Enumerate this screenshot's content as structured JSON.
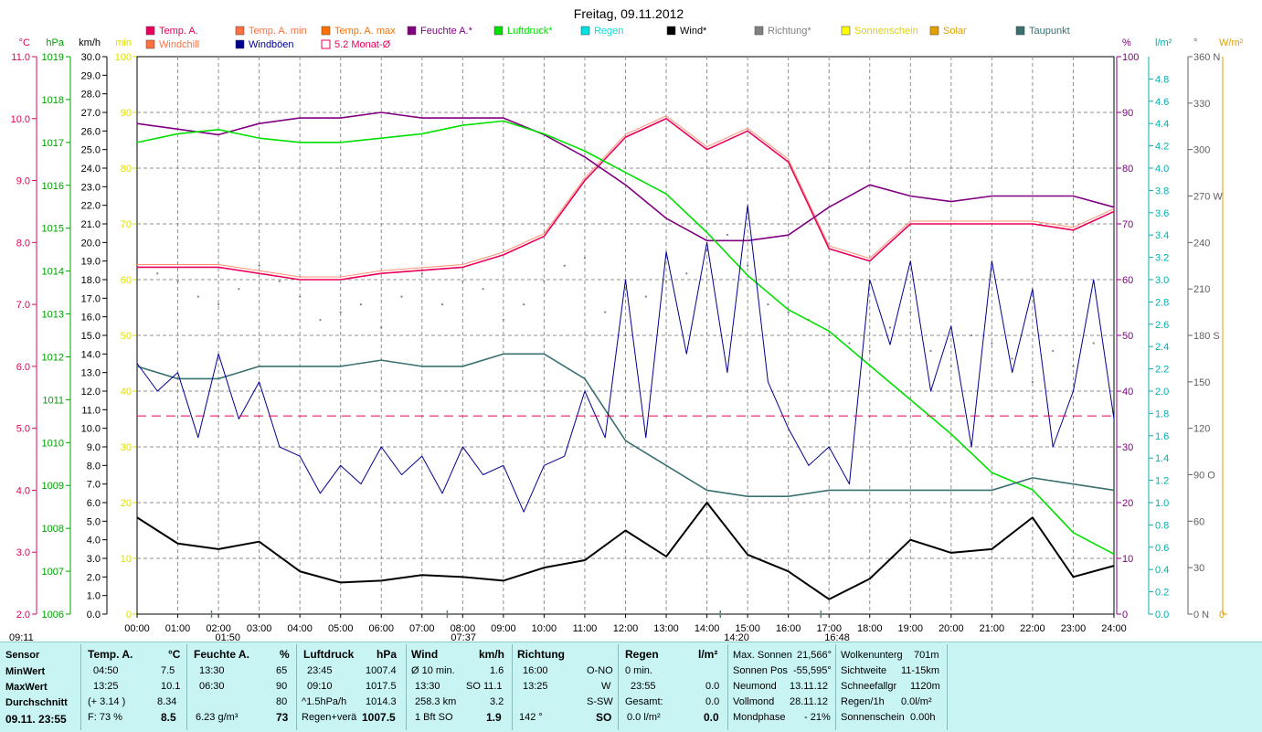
{
  "chart_data": {
    "type": "line",
    "title": "Freitag, 09.11.2012",
    "x_ticks": [
      "00:00",
      "01:00",
      "02:00",
      "03:00",
      "04:00",
      "05:00",
      "06:00",
      "07:00",
      "08:00",
      "09:00",
      "10:00",
      "11:00",
      "12:00",
      "13:00",
      "14:00",
      "15:00",
      "16:00",
      "17:00",
      "18:00",
      "19:00",
      "20:00",
      "21:00",
      "22:00",
      "23:00",
      "24:00"
    ],
    "xlim": [
      0,
      24
    ],
    "legend": [
      {
        "name": "Temp. A.",
        "color": "#e8005a",
        "shape": "box"
      },
      {
        "name": "Temp. A. min",
        "color": "#ff7040",
        "shape": "box"
      },
      {
        "name": "Temp. A. max",
        "color": "#ff7000",
        "shape": "box"
      },
      {
        "name": "Feuchte A.*",
        "color": "#800080",
        "shape": "box"
      },
      {
        "name": "Luftdruck*",
        "color": "#00e000",
        "shape": "box"
      },
      {
        "name": "Regen",
        "color": "#00e0e0",
        "shape": "box"
      },
      {
        "name": "Wind*",
        "color": "#000000",
        "shape": "box"
      },
      {
        "name": "Richtung*",
        "color": "#808080",
        "shape": "box"
      },
      {
        "name": "Sonnenschein",
        "color": "#ffff00",
        "shape": "box"
      },
      {
        "name": "Solar",
        "color": "#e0a000",
        "shape": "box"
      },
      {
        "name": "Taupunkt",
        "color": "#3a7070",
        "shape": "box"
      },
      {
        "name": "Windchill",
        "color": "#ff7040",
        "shape": "box"
      },
      {
        "name": "Windböen",
        "color": "#000090",
        "shape": "box"
      },
      {
        "name": "5.2 Monat-Ø",
        "color": "#e8005a",
        "shape": "outline"
      }
    ],
    "axes": {
      "temp": {
        "unit": "°C",
        "color": "#e8005a",
        "range": [
          2.0,
          11.0
        ],
        "ticks": [
          "11.0",
          "10.0",
          "9.0",
          "8.0",
          "7.0",
          "6.0",
          "5.0",
          "4.0",
          "3.0",
          "2.0"
        ]
      },
      "hpa": {
        "unit": "hPa",
        "color": "#00a000",
        "range": [
          1006,
          1019
        ],
        "ticks": [
          "1019",
          "1018",
          "1017",
          "1016",
          "1015",
          "1014",
          "1013",
          "1012",
          "1011",
          "1010",
          "1009",
          "1008",
          "1007",
          "1006"
        ]
      },
      "kmh": {
        "unit": "km/h",
        "color": "#000000",
        "range": [
          0,
          30
        ],
        "ticks": [
          "30.0",
          "29.0",
          "28.0",
          "27.0",
          "26.0",
          "25.0",
          "24.0",
          "23.0",
          "22.0",
          "21.0",
          "20.0",
          "19.0",
          "18.0",
          "17.0",
          "16.0",
          "15.0",
          "14.0",
          "13.0",
          "12.0",
          "11.0",
          "10.0",
          "9.0",
          "8.0",
          "7.0",
          "6.0",
          "5.0",
          "4.0",
          "3.0",
          "2.0",
          "1.0",
          "0.0"
        ]
      },
      "min": {
        "unit": "min",
        "color": "#e0e000",
        "range": [
          0,
          100
        ],
        "ticks": [
          "100",
          "90",
          "80",
          "70",
          "60",
          "50",
          "40",
          "30",
          "20",
          "10",
          "0"
        ]
      },
      "pct": {
        "unit": "%",
        "color": "#800080",
        "range": [
          0,
          100
        ],
        "ticks": [
          "100",
          "90",
          "80",
          "70",
          "60",
          "50",
          "40",
          "30",
          "20",
          "10",
          "0"
        ]
      },
      "rain": {
        "unit": "l/m²",
        "color": "#00b0b0",
        "range": [
          0,
          5.0
        ],
        "ticks": [
          "4.8",
          "4.6",
          "4.4",
          "4.2",
          "4.0",
          "3.8",
          "3.6",
          "3.4",
          "3.2",
          "3.0",
          "2.8",
          "2.6",
          "2.4",
          "2.2",
          "2.0",
          "1.8",
          "1.6",
          "1.4",
          "1.2",
          "1.0",
          "0.8",
          "0.6",
          "0.4",
          "0.2",
          "0.0"
        ]
      },
      "dir": {
        "unit": "°",
        "color": "#606060",
        "range": [
          0,
          360
        ],
        "ticks": [
          "360 N",
          "330",
          "300",
          "270 W",
          "240",
          "210",
          "180 S",
          "150",
          "120",
          "90  O",
          "60",
          "30",
          "0  N"
        ]
      },
      "solar": {
        "unit": "W/m²",
        "color": "#e0a000",
        "ticks": [
          "0"
        ]
      }
    },
    "series": [
      {
        "name": "Temp. A.",
        "axis": "temp",
        "color": "#e8005a",
        "x": [
          0,
          2,
          4,
          5,
          6,
          8,
          9,
          10,
          11,
          12,
          13,
          14,
          15,
          16,
          17,
          18,
          19,
          20,
          21,
          22,
          23,
          24
        ],
        "y": [
          7.6,
          7.6,
          7.4,
          7.4,
          7.5,
          7.6,
          7.8,
          8.1,
          9.0,
          9.7,
          10.0,
          9.5,
          9.8,
          9.3,
          7.9,
          7.7,
          8.3,
          8.3,
          8.3,
          8.3,
          8.2,
          8.5
        ]
      },
      {
        "name": "Feuchte A.*",
        "axis": "pct",
        "color": "#800080",
        "x": [
          0,
          1,
          2,
          3,
          4,
          5,
          6,
          7,
          8,
          9,
          10,
          11,
          12,
          13,
          14,
          15,
          16,
          17,
          18,
          19,
          20,
          21,
          22,
          23,
          24
        ],
        "y": [
          88,
          87,
          86,
          88,
          89,
          89,
          90,
          89,
          89,
          89,
          86,
          82,
          77,
          71,
          67,
          67,
          68,
          73,
          77,
          75,
          74,
          75,
          75,
          75,
          73
        ]
      },
      {
        "name": "Luftdruck*",
        "axis": "hpa",
        "color": "#00e000",
        "x": [
          0,
          1,
          2,
          3,
          4,
          5,
          6,
          7,
          8,
          9,
          10,
          11,
          12,
          13,
          14,
          15,
          16,
          17,
          18,
          19,
          20,
          21,
          22,
          23,
          24
        ],
        "y": [
          1017.0,
          1017.2,
          1017.3,
          1017.1,
          1017.0,
          1017.0,
          1017.1,
          1017.2,
          1017.4,
          1017.5,
          1017.2,
          1016.8,
          1016.3,
          1015.8,
          1014.9,
          1013.9,
          1013.1,
          1012.6,
          1011.8,
          1011.0,
          1010.2,
          1009.3,
          1008.9,
          1007.9,
          1007.4
        ]
      },
      {
        "name": "Taupunkt",
        "axis": "temp",
        "color": "#3a7070",
        "x": [
          0,
          1,
          2,
          3,
          4,
          5,
          6,
          7,
          8,
          9,
          10,
          11,
          12,
          13,
          14,
          15,
          16,
          17,
          18,
          19,
          20,
          21,
          22,
          23,
          24
        ],
        "y": [
          6.0,
          5.8,
          5.8,
          6.0,
          6.0,
          6.0,
          6.1,
          6.0,
          6.0,
          6.2,
          6.2,
          5.8,
          4.8,
          4.4,
          4.0,
          3.9,
          3.9,
          4.0,
          4.0,
          4.0,
          4.0,
          4.0,
          4.2,
          4.1,
          4.0
        ]
      },
      {
        "name": "Wind*",
        "axis": "kmh",
        "color": "#000000",
        "x": [
          0,
          1,
          2,
          3,
          4,
          5,
          6,
          7,
          8,
          9,
          10,
          11,
          12,
          13,
          14,
          15,
          16,
          17,
          18,
          19,
          20,
          21,
          22,
          23,
          24
        ],
        "y": [
          5.2,
          3.8,
          3.5,
          3.9,
          2.3,
          1.7,
          1.8,
          2.1,
          2.0,
          1.8,
          2.5,
          2.9,
          4.5,
          3.1,
          6.0,
          3.2,
          2.3,
          0.8,
          1.9,
          4.0,
          3.3,
          3.5,
          5.2,
          2.0,
          2.6
        ]
      },
      {
        "name": "Windböen",
        "axis": "kmh",
        "color": "#000090",
        "x": [
          0,
          0.5,
          1,
          1.5,
          2,
          2.5,
          3,
          3.5,
          4,
          4.5,
          5,
          5.5,
          6,
          6.5,
          7,
          7.5,
          8,
          8.5,
          9,
          9.5,
          10,
          10.5,
          11,
          11.5,
          12,
          12.5,
          13,
          13.5,
          14,
          14.5,
          15,
          15.5,
          16,
          16.5,
          17,
          17.5,
          18,
          18.5,
          19,
          19.5,
          20,
          20.5,
          21,
          21.5,
          22,
          22.5,
          23,
          23.5,
          24
        ],
        "y": [
          13.5,
          12.0,
          13.0,
          9.5,
          14.0,
          10.5,
          12.5,
          9.0,
          8.5,
          6.5,
          8.0,
          7.0,
          9.0,
          7.5,
          8.5,
          6.5,
          9.0,
          7.5,
          8.0,
          5.5,
          8.0,
          8.5,
          12.0,
          9.5,
          18.0,
          9.5,
          19.5,
          14.0,
          20.0,
          13.0,
          22.0,
          12.5,
          10.0,
          8.0,
          9.0,
          7.0,
          18.0,
          14.5,
          19.0,
          12.0,
          15.5,
          9.0,
          19.0,
          13.0,
          17.5,
          9.0,
          12.0,
          18.0,
          10.5
        ]
      },
      {
        "name": "5.2 Monat-Ø",
        "axis": "temp",
        "color": "#e8005a",
        "style": "dashed",
        "x": [
          0,
          24
        ],
        "y": [
          5.2,
          5.2
        ]
      }
    ],
    "scatter_series": [
      {
        "name": "Richtung*",
        "axis": "dir",
        "color": "#808080",
        "x": [
          0.5,
          1,
          1.5,
          2,
          2.5,
          3,
          3.5,
          4,
          4.5,
          5,
          5.5,
          6,
          6.5,
          7,
          7.5,
          8,
          8.5,
          9,
          9.5,
          10,
          10.5,
          11,
          11.5,
          12,
          12.5,
          13,
          13.5,
          14,
          14.5,
          15,
          15.5,
          16,
          16.5,
          17,
          17.5,
          18,
          18.5,
          19,
          19.5,
          20,
          20.5,
          21,
          21.5,
          22,
          22.5,
          23,
          23.5
        ],
        "y": [
          220,
          215,
          205,
          200,
          210,
          225,
          215,
          205,
          190,
          195,
          200,
          185,
          205,
          220,
          200,
          215,
          210,
          190,
          200,
          215,
          225,
          230,
          195,
          180,
          205,
          215,
          220,
          235,
          245,
          225,
          200,
          195,
          190,
          180,
          175,
          170,
          185,
          195,
          170,
          160,
          180,
          175,
          165,
          150,
          170,
          160,
          175
        ]
      }
    ],
    "event_markers": [
      {
        "label": "09:11",
        "x": 9.18
      },
      {
        "label": "01:50",
        "x": 1.83
      },
      {
        "label": "07:37",
        "x": 7.62
      },
      {
        "label": "14:20",
        "x": 14.33
      },
      {
        "label": "16:48",
        "x": 16.8
      }
    ]
  },
  "stats": {
    "row_labels": {
      "sensor": "Sensor",
      "min": "MinWert",
      "max": "MaxWert",
      "avg": "Durchschnitt",
      "current": "09.11. 23:55"
    },
    "temp": {
      "header": "Temp. A.",
      "unit": "°C",
      "min_time": "04:50",
      "min_val": "7.5",
      "max_time": "13:25",
      "max_val": "10.1",
      "avg_extra": "(+ 3.14 )",
      "avg_val": "8.34",
      "cur_extra": "F: 73 %",
      "cur_val": "8.5"
    },
    "hum": {
      "header": "Feuchte A.",
      "unit": "%",
      "min_time": "13:30",
      "min_val": "65",
      "max_time": "06:30",
      "max_val": "90",
      "avg_val": "80",
      "cur_extra": "6.23 g/m³",
      "cur_val": "73"
    },
    "press": {
      "header": "Luftdruck",
      "unit": "hPa",
      "min_time": "23:45",
      "min_val": "1007.4",
      "max_time": "09:10",
      "max_val": "1017.5",
      "avg_extra": "^1.5hPa/h",
      "avg_val": "1014.3",
      "cur_extra": "Regen+verä",
      "cur_val": "1007.5"
    },
    "wind": {
      "header": "Wind",
      "unit": "km/h",
      "r1_label": "Ø 10 min.",
      "r1_val": "1.6",
      "r2_time": "13:30",
      "r2_val": "SO 11.1",
      "r3_label": "258.3 km",
      "r3_val": "3.2",
      "r4_label": "1 Bft SO",
      "r4_val": "1.9"
    },
    "dir": {
      "header": "Richtung",
      "r1_time": "16:00",
      "r1_val": "O-NO",
      "r2_time": "13:25",
      "r2_val": "W",
      "r3_val": "S-SW",
      "r4_label": "142 °",
      "r4_val": "SO"
    },
    "rain": {
      "header": "Regen",
      "unit": "l/m²",
      "r1_label": "0 min.",
      "r2_time": "23:55",
      "r2_val": "0.0",
      "r3_label": "Gesamt:",
      "r3_val": "0.0",
      "r4_label": "0.0 l/m²",
      "r4_val": "0.0"
    },
    "astro": {
      "r1_label": "Max. Sonnen",
      "r1_val": "21,566°",
      "r2_label": "Sonnen Pos",
      "r2_val": "-55,595°",
      "r3_label": "Neumond",
      "r3_val": "13.11.12",
      "r4_label": "Vollmond",
      "r4_val": "28.11.12",
      "r5_label": "Mondphase",
      "r5_val": "- 21%"
    },
    "misc": {
      "r1_label": "Wolkenunterg",
      "r1_val": "701m",
      "r2_label": "Sichtweite",
      "r2_val": "11-15km",
      "r3_label": "Schneefallgr",
      "r3_val": "1120m",
      "r4_label": "Regen/1h",
      "r4_val": "0.0l/m²",
      "r5_label": "Sonnenschein",
      "r5_val": "0.00h"
    }
  }
}
